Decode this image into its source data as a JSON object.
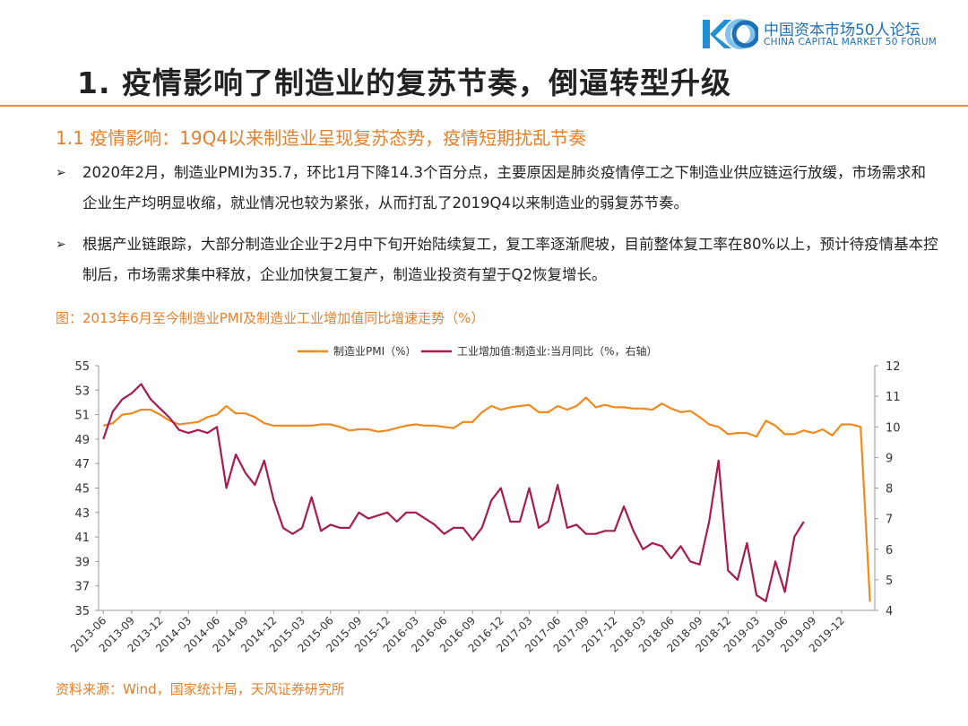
{
  "logo": {
    "cn": "中国资本市场50人论坛",
    "en": "CHINA CAPITAL MARKET 50 FORUM"
  },
  "header": {
    "title": "1. 疫情影响了制造业的复苏节奏，倒逼转型升级"
  },
  "section": {
    "subtitle": "1.1 疫情影响：19Q4以来制造业呈现复苏态势，疫情短期扰乱节奏"
  },
  "bullets": [
    {
      "mark": "➢",
      "text": "2020年2月，制造业PMI为35.7，环比1月下降14.3个百分点，主要原因是肺炎疫情停工之下制造业供应链运行放缓，市场需求和企业生产均明显收缩，就业情况也较为紧张，从而打乱了2019Q4以来制造业的弱复苏节奏。"
    },
    {
      "mark": "➢",
      "text": "根据产业链跟踪，大部分制造业企业于2月中下旬开始陆续复工，复工率逐渐爬坡，目前整体复工率在80%以上，预计待疫情基本控制后，市场需求集中释放，企业加快复工复产，制造业投资有望于Q2恢复增长。"
    }
  ],
  "figure": {
    "title": "图：2013年6月至今制造业PMI及制造业工业增加值同比增速走势（%）",
    "source": "资料来源：Wind，国家统计局，天风证券研究所"
  },
  "chart_data": {
    "type": "line",
    "title": "",
    "legend_position": "top-center",
    "grid": false,
    "x_start": "2013-06",
    "x_ticks": [
      "2013-06",
      "2013-09",
      "2013-12",
      "2014-03",
      "2014-06",
      "2014-09",
      "2014-12",
      "2015-03",
      "2015-06",
      "2015-09",
      "2015-12",
      "2016-03",
      "2016-06",
      "2016-09",
      "2016-12",
      "2017-03",
      "2017-06",
      "2017-09",
      "2017-12",
      "2018-03",
      "2018-06",
      "2018-09",
      "2018-12",
      "2019-03",
      "2019-06",
      "2019-09",
      "2019-12"
    ],
    "y_left": {
      "min": 35,
      "max": 55,
      "ticks": [
        35,
        37,
        39,
        41,
        43,
        45,
        47,
        49,
        51,
        53,
        55
      ]
    },
    "y_right": {
      "min": 4,
      "max": 12,
      "ticks": [
        4,
        5,
        6,
        7,
        8,
        9,
        10,
        11,
        12
      ]
    },
    "series": [
      {
        "name": "制造业PMI（%）",
        "axis": "left",
        "color": "#ee8a1f",
        "values": [
          50.1,
          50.3,
          51.0,
          51.1,
          51.4,
          51.4,
          51.0,
          50.5,
          50.2,
          50.3,
          50.4,
          50.8,
          51.0,
          51.7,
          51.1,
          51.1,
          50.8,
          50.3,
          50.1,
          50.1,
          50.1,
          50.1,
          50.1,
          50.2,
          50.2,
          50.0,
          49.7,
          49.8,
          49.8,
          49.6,
          49.7,
          49.9,
          50.1,
          50.2,
          50.1,
          50.1,
          50.0,
          49.9,
          50.4,
          50.4,
          51.2,
          51.7,
          51.4,
          51.6,
          51.7,
          51.8,
          51.2,
          51.2,
          51.7,
          51.4,
          51.7,
          52.4,
          51.6,
          51.8,
          51.6,
          51.6,
          51.5,
          51.5,
          51.4,
          51.9,
          51.5,
          51.2,
          51.3,
          50.8,
          50.2,
          50.0,
          49.4,
          49.5,
          49.5,
          49.2,
          50.5,
          50.1,
          49.4,
          49.4,
          49.7,
          49.5,
          49.8,
          49.3,
          50.2,
          50.2,
          50.0,
          35.7
        ]
      },
      {
        "name": "工业增加值:制造业:当月同比（%，右轴）",
        "axis": "right",
        "color": "#a61c50",
        "values": [
          9.6,
          10.5,
          10.9,
          11.1,
          11.4,
          10.9,
          10.6,
          10.3,
          9.9,
          9.8,
          9.9,
          9.8,
          10.0,
          8.0,
          9.1,
          8.5,
          8.1,
          8.9,
          7.6,
          6.7,
          6.5,
          6.7,
          7.7,
          6.6,
          6.8,
          6.7,
          6.7,
          7.2,
          7.0,
          7.1,
          7.2,
          6.9,
          7.2,
          7.2,
          7.0,
          6.8,
          6.5,
          6.7,
          6.7,
          6.3,
          6.7,
          7.6,
          8.0,
          6.9,
          6.9,
          8.0,
          6.7,
          6.9,
          8.1,
          6.7,
          6.8,
          6.5,
          6.5,
          6.6,
          6.6,
          7.4,
          6.6,
          6.0,
          6.2,
          6.1,
          5.7,
          6.1,
          5.6,
          5.5,
          6.9,
          8.9,
          5.3,
          5.0,
          6.2,
          4.5,
          4.3,
          5.6,
          4.6,
          6.4,
          6.9
        ]
      }
    ]
  }
}
